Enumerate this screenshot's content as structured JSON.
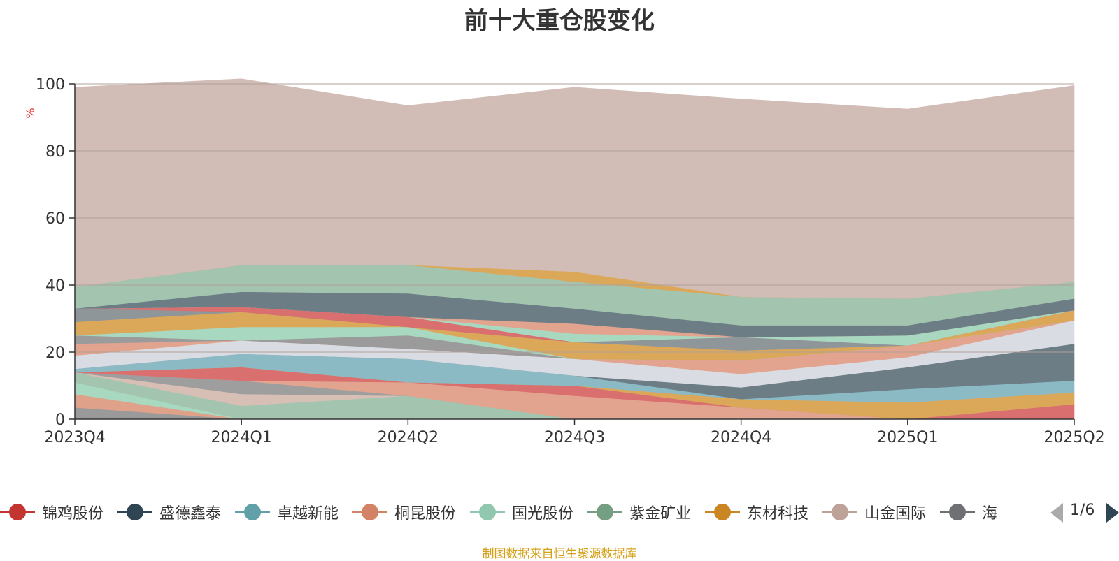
{
  "chart_data": {
    "type": "area",
    "stacked": true,
    "title": "前十大重仓股变化",
    "ylabel": "%",
    "ylim": [
      0,
      100
    ],
    "yticks": [
      0,
      20,
      40,
      60,
      80,
      100
    ],
    "categories": [
      "2023Q4",
      "2024Q1",
      "2024Q2",
      "2024Q3",
      "2024Q4",
      "2025Q1",
      "2025Q2"
    ],
    "series": [
      {
        "color": "#9a9a9a",
        "values": [
          3.5,
          0.0,
          0.0,
          0.0,
          0.0,
          0.0,
          0.0
        ]
      },
      {
        "color": "#e0a18a",
        "values": [
          4.0,
          0.0,
          0.0,
          0.0,
          0.0,
          0.0,
          0.0
        ]
      },
      {
        "color": "#a8d8c0",
        "values": [
          3.5,
          0.0,
          0.0,
          0.0,
          0.0,
          0.0,
          0.0
        ]
      },
      {
        "color": "#a3c4ae",
        "values": [
          3.0,
          4.0,
          7.0,
          0.0,
          0.0,
          0.0,
          0.0
        ]
      },
      {
        "color": "#d8bfb5",
        "values": [
          0.0,
          3.5,
          0.0,
          0.0,
          0.0,
          0.0,
          0.0
        ]
      },
      {
        "color": "#9e9e9e",
        "values": [
          0.0,
          4.0,
          0.0,
          0.0,
          0.0,
          0.0,
          0.0
        ]
      },
      {
        "color": "#e3a48f",
        "values": [
          0.0,
          0.0,
          4.0,
          7.0,
          3.5,
          0.0,
          0.0
        ]
      },
      {
        "color": "#d96f6f",
        "values": [
          0.0,
          4.0,
          0.0,
          3.0,
          0.0,
          0.0,
          4.5
        ]
      },
      {
        "color": "#dba85a",
        "values": [
          0.0,
          0.0,
          0.0,
          0.0,
          2.5,
          5.0,
          3.5
        ]
      },
      {
        "color": "#8bbac5",
        "values": [
          1.0,
          4.0,
          7.0,
          3.0,
          0.0,
          4.0,
          3.5
        ]
      },
      {
        "color": "#6c7d86",
        "values": [
          0.0,
          0.0,
          0.0,
          0.0,
          3.5,
          6.5,
          11.0
        ]
      },
      {
        "color": "#d9dde3",
        "values": [
          4.0,
          4.0,
          3.0,
          5.0,
          4.0,
          3.0,
          7.0
        ]
      },
      {
        "color": "#e3a48f",
        "values": [
          3.5,
          0.0,
          0.0,
          0.0,
          4.0,
          3.5,
          0.0
        ]
      },
      {
        "color": "#9b9b9b",
        "values": [
          2.5,
          0.0,
          4.0,
          0.0,
          0.0,
          0.0,
          0.0
        ]
      },
      {
        "color": "#a8d8c0",
        "values": [
          0.0,
          4.0,
          2.5,
          0.0,
          0.0,
          0.0,
          0.0
        ]
      },
      {
        "color": "#dba85a",
        "values": [
          4.0,
          4.5,
          0.0,
          5.0,
          3.0,
          0.0,
          3.0
        ]
      },
      {
        "color": "#8e969a",
        "values": [
          4.0,
          0.0,
          0.0,
          0.0,
          4.0,
          0.0,
          0.0
        ]
      },
      {
        "color": "#d96f6f",
        "values": [
          0.0,
          1.5,
          3.0,
          0.0,
          0.0,
          0.0,
          0.0
        ]
      },
      {
        "color": "#a8d8c0",
        "values": [
          0.0,
          0.0,
          0.0,
          2.5,
          0.0,
          3.0,
          0.0
        ]
      },
      {
        "color": "#e3a48f",
        "values": [
          0.0,
          0.0,
          0.0,
          3.0,
          0.0,
          0.0,
          0.0
        ]
      },
      {
        "color": "#6c7d86",
        "values": [
          0.0,
          4.5,
          7.0,
          4.5,
          3.5,
          3.0,
          3.5
        ]
      },
      {
        "color": "#a3c4ae",
        "values": [
          6.5,
          8.0,
          8.5,
          8.0,
          8.5,
          8.0,
          5.0
        ]
      },
      {
        "color": "#dba85a",
        "values": [
          0.0,
          0.0,
          0.0,
          3.0,
          0.0,
          0.0,
          0.0
        ]
      },
      {
        "color": "#d1bdb6",
        "values": [
          59.5,
          55.5,
          47.5,
          55.0,
          59.0,
          56.5,
          58.5
        ]
      }
    ]
  },
  "legend": {
    "items": [
      {
        "label": "锦鸡股份",
        "color": "#c23531"
      },
      {
        "label": "盛德鑫泰",
        "color": "#2f4554"
      },
      {
        "label": "卓越新能",
        "color": "#61a0a8"
      },
      {
        "label": "桐昆股份",
        "color": "#d48265"
      },
      {
        "label": "国光股份",
        "color": "#91c7ae"
      },
      {
        "label": "紫金矿业",
        "color": "#749f83"
      },
      {
        "label": "东材科技",
        "color": "#ca8622"
      },
      {
        "label": "山金国际",
        "color": "#bda29a"
      },
      {
        "label": "海",
        "color": "#6e7074"
      }
    ],
    "page": "1/6"
  },
  "source_note": "制图数据来自恒生聚源数据库"
}
